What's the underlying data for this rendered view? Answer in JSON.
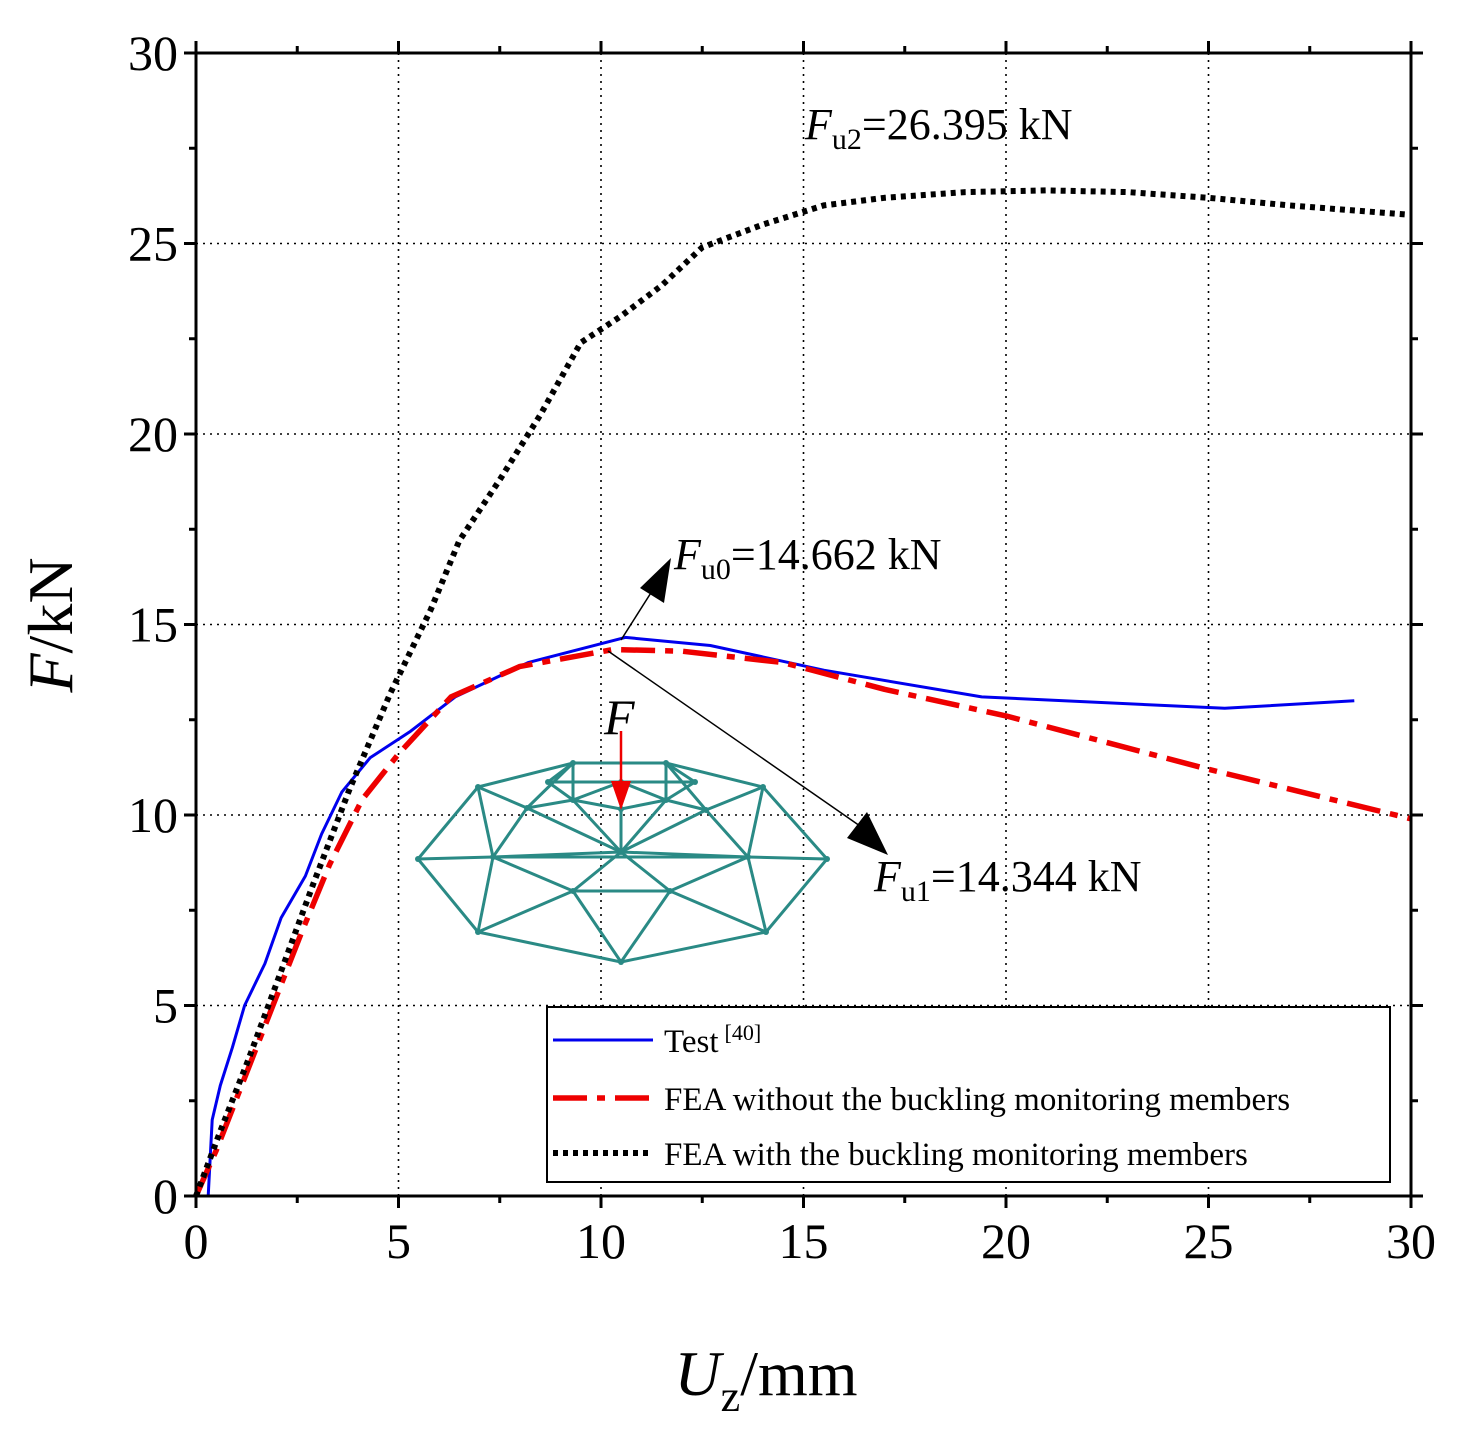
{
  "chart_data": {
    "type": "line",
    "xlabel": {
      "main": "U",
      "sub": "z",
      "unit": "/mm"
    },
    "ylabel": {
      "main": "F",
      "unit": "/kN"
    },
    "xlim": [
      0,
      30
    ],
    "ylim": [
      0,
      30
    ],
    "xticks": [
      "0",
      "5",
      "10",
      "15",
      "20",
      "25",
      "30"
    ],
    "yticks": [
      "0",
      "5",
      "10",
      "15",
      "20",
      "25",
      "30"
    ],
    "grid": true,
    "legend_position": "bottom-right",
    "series": [
      {
        "name": "Test",
        "name_sup": "[40]",
        "color": "#0000ee",
        "style": "solid",
        "x": [
          0.3,
          0.35,
          0.4,
          0.6,
          0.9,
          1.2,
          1.7,
          2.1,
          2.7,
          3.1,
          3.6,
          4.3,
          5.3,
          6.4,
          8.2,
          10.6,
          12.7,
          15.5,
          19.4,
          25.4,
          28.6
        ],
        "y": [
          0,
          1.0,
          2.0,
          2.9,
          3.9,
          5.0,
          6.1,
          7.3,
          8.4,
          9.5,
          10.6,
          11.5,
          12.2,
          13.1,
          14.0,
          14.662,
          14.45,
          13.8,
          13.1,
          12.8,
          13.0
        ]
      },
      {
        "name": "FEA without the buckling monitoring members",
        "color": "#ee0000",
        "style": "dash-dot",
        "x": [
          0,
          0.5,
          1.2,
          1.9,
          2.6,
          3.3,
          4.1,
          5.0,
          6.3,
          8.0,
          10.3,
          12.0,
          14.5,
          17.0,
          20.0,
          25.0,
          30.0
        ],
        "y": [
          0,
          1.2,
          3.1,
          5.0,
          6.9,
          8.7,
          10.4,
          11.6,
          13.1,
          13.9,
          14.344,
          14.3,
          14.0,
          13.3,
          12.6,
          11.2,
          9.9
        ]
      },
      {
        "name": "FEA with the buckling monitoring members",
        "color": "#000000",
        "style": "dotted",
        "x": [
          0,
          0.6,
          1.3,
          2.1,
          2.9,
          3.8,
          4.8,
          5.8,
          6.5,
          7.5,
          8.5,
          9.5,
          10.5,
          11.5,
          12.5,
          14.0,
          15.5,
          17.0,
          19.0,
          21.0,
          23.0,
          25.0,
          27.0,
          30.0
        ],
        "y": [
          0,
          1.7,
          3.6,
          5.9,
          8.2,
          10.7,
          13.2,
          15.4,
          17.2,
          18.8,
          20.5,
          22.4,
          23.1,
          23.9,
          24.9,
          25.5,
          26.0,
          26.2,
          26.35,
          26.395,
          26.35,
          26.2,
          26.0,
          25.75
        ]
      }
    ],
    "annotations": [
      {
        "main": "F",
        "sub": "u2",
        "text": "=26.395 kN"
      },
      {
        "main": "F",
        "sub": "u0",
        "text": "=14.662 kN"
      },
      {
        "main": "F",
        "sub": "u1",
        "text": "=14.344 kN"
      }
    ],
    "inset": {
      "load_label": "F",
      "frame_color": "#2a8a85",
      "load_color": "#ee0000"
    }
  }
}
